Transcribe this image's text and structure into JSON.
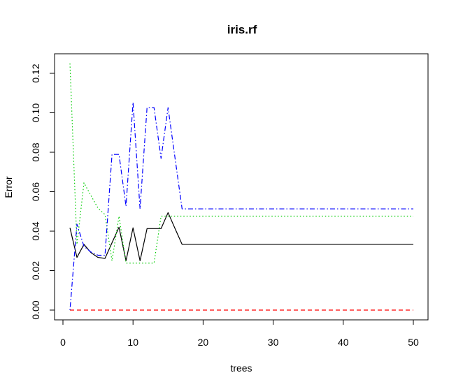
{
  "chart_data": {
    "type": "line",
    "title": "iris.rf",
    "xlabel": "trees",
    "ylabel": "Error",
    "xlim": [
      0,
      50
    ],
    "ylim": [
      0,
      0.125
    ],
    "x_ticks": [
      0,
      10,
      20,
      30,
      40,
      50
    ],
    "x_tick_labels": [
      "0",
      "10",
      "20",
      "30",
      "40",
      "50"
    ],
    "y_ticks": [
      0,
      0.02,
      0.04,
      0.06,
      0.08,
      0.1,
      0.12
    ],
    "y_tick_labels": [
      "0.00",
      "0.02",
      "0.04",
      "0.06",
      "0.08",
      "0.10",
      "0.12"
    ],
    "grid": false,
    "legend": "none",
    "x": [
      1,
      2,
      3,
      4,
      5,
      6,
      7,
      8,
      9,
      10,
      11,
      12,
      13,
      14,
      15,
      16,
      17,
      18,
      19,
      20,
      21,
      22,
      23,
      24,
      25,
      26,
      27,
      28,
      29,
      30,
      31,
      32,
      33,
      34,
      35,
      36,
      37,
      38,
      39,
      40,
      41,
      42,
      43,
      44,
      45,
      46,
      47,
      48,
      49,
      50
    ],
    "series": [
      {
        "color": "#000000",
        "dash": "solid",
        "values": [
          0.0417,
          0.0267,
          0.0333,
          0.0291,
          0.0267,
          0.0262,
          0.0341,
          0.042,
          0.025,
          0.0417,
          0.025,
          0.0413,
          0.0413,
          0.0413,
          0.0494,
          0.0413,
          0.0333,
          0.0333,
          0.0333,
          0.0333,
          0.0333,
          0.0333,
          0.0333,
          0.0333,
          0.0333,
          0.0333,
          0.0333,
          0.0333,
          0.0333,
          0.0333,
          0.0333,
          0.0333,
          0.0333,
          0.0333,
          0.0333,
          0.0333,
          0.0333,
          0.0333,
          0.0333,
          0.0333,
          0.0333,
          0.0333,
          0.0333,
          0.0333,
          0.0333,
          0.0333,
          0.0333,
          0.0333,
          0.0333,
          0.0333
        ]
      },
      {
        "color": "#ff0000",
        "dash": "dashed",
        "values": [
          0,
          0,
          0,
          0,
          0,
          0,
          0,
          0,
          0,
          0,
          0,
          0,
          0,
          0,
          0,
          0,
          0,
          0,
          0,
          0,
          0,
          0,
          0,
          0,
          0,
          0,
          0,
          0,
          0,
          0,
          0,
          0,
          0,
          0,
          0,
          0,
          0,
          0,
          0,
          0,
          0,
          0,
          0,
          0,
          0,
          0,
          0,
          0,
          0,
          0
        ]
      },
      {
        "color": "#00cc00",
        "dash": "dotted",
        "values": [
          0.125,
          0.0333,
          0.0645,
          0.058,
          0.0517,
          0.0484,
          0.025,
          0.0476,
          0.0238,
          0.0238,
          0.0238,
          0.0238,
          0.0238,
          0.0476,
          0.0476,
          0.0476,
          0.0476,
          0.0476,
          0.0476,
          0.0476,
          0.0476,
          0.0476,
          0.0476,
          0.0476,
          0.0476,
          0.0476,
          0.0476,
          0.0476,
          0.0476,
          0.0476,
          0.0476,
          0.0476,
          0.0476,
          0.0476,
          0.0476,
          0.0476,
          0.0476,
          0.0476,
          0.0476,
          0.0476,
          0.0476,
          0.0476,
          0.0476,
          0.0476,
          0.0476,
          0.0476,
          0.0476,
          0.0476,
          0.0476,
          0.0476
        ]
      },
      {
        "color": "#0000ff",
        "dash": "dotdash",
        "values": [
          0.0,
          0.0435,
          0.0323,
          0.0294,
          0.0278,
          0.0278,
          0.0789,
          0.0789,
          0.0526,
          0.1053,
          0.0513,
          0.1026,
          0.1026,
          0.0769,
          0.1026,
          0.0769,
          0.0513,
          0.0513,
          0.0513,
          0.0513,
          0.0513,
          0.0513,
          0.0513,
          0.0513,
          0.0513,
          0.0513,
          0.0513,
          0.0513,
          0.0513,
          0.0513,
          0.0513,
          0.0513,
          0.0513,
          0.0513,
          0.0513,
          0.0513,
          0.0513,
          0.0513,
          0.0513,
          0.0513,
          0.0513,
          0.0513,
          0.0513,
          0.0513,
          0.0513,
          0.0513,
          0.0513,
          0.0513,
          0.0513,
          0.0513
        ]
      }
    ]
  }
}
